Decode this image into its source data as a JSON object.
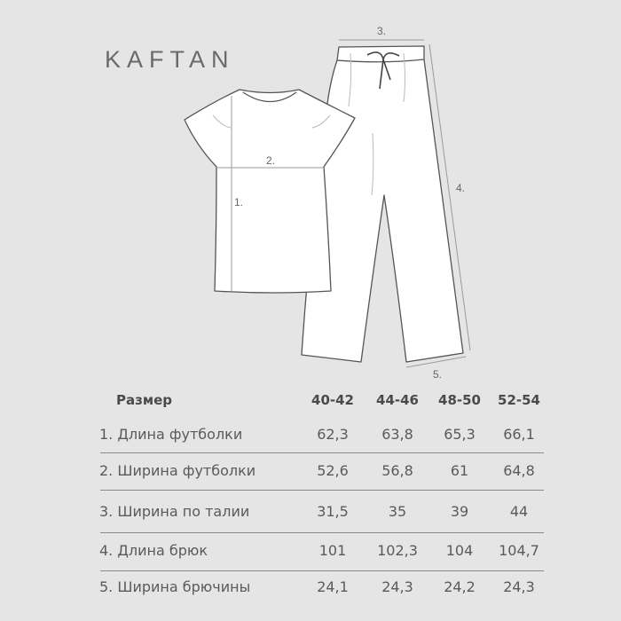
{
  "brand": "KAFTAN",
  "diagram": {
    "labels": {
      "m1": "1.",
      "m2": "2.",
      "m3": "3.",
      "m4": "4.",
      "m5": "5."
    }
  },
  "table": {
    "header": {
      "label": "Размер",
      "sizes": [
        "40-42",
        "44-46",
        "48-50",
        "52-54"
      ]
    },
    "rows": [
      {
        "label": "1.  Длина футболки",
        "values": [
          "62,3",
          "63,8",
          "65,3",
          "66,1"
        ]
      },
      {
        "label": "2. Ширина футболки",
        "values": [
          "52,6",
          "56,8",
          "61",
          "64,8"
        ]
      },
      {
        "label": "3. Ширина по талии",
        "values": [
          "31,5",
          "35",
          "39",
          "44"
        ]
      },
      {
        "label": "4. Длина брюк",
        "values": [
          "101",
          "102,3",
          "104",
          "104,7"
        ]
      },
      {
        "label": "5. Ширина брючины",
        "values": [
          "24,1",
          "24,3",
          "24,2",
          "24,3"
        ]
      }
    ]
  }
}
